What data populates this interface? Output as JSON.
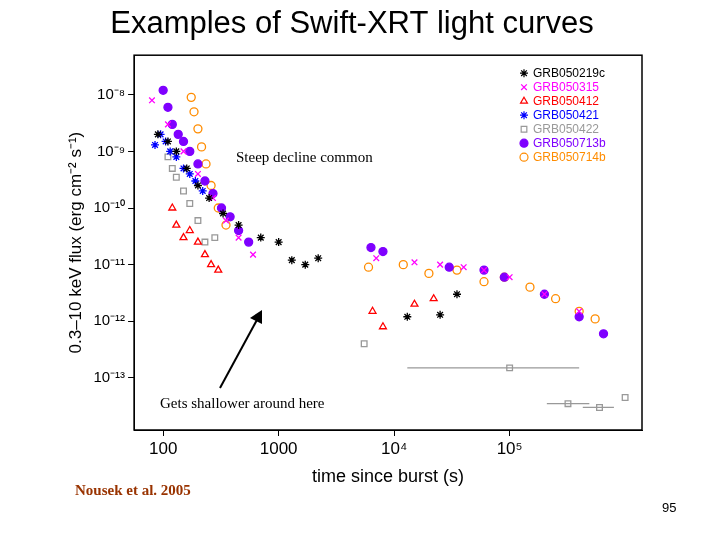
{
  "chart_data": {
    "type": "scatter",
    "title": "Examples of Swift-XRT light curves",
    "x_label": "time since burst (s)",
    "y_label": "0.3–10 keV flux (erg cm⁻² s⁻¹)",
    "log": true,
    "grid": false,
    "legend": "upper right",
    "xlim": [
      56,
      1400000
    ],
    "ylim": [
      1.2e-14,
      5e-08
    ],
    "xticks": [
      100,
      1000,
      {
        "value": 10000,
        "label": "10⁴"
      },
      {
        "value": 100000,
        "label": "10⁵"
      }
    ],
    "yticks": [
      {
        "value": 1e-13,
        "label": "10⁻¹³"
      },
      {
        "value": 1e-12,
        "label": "10⁻¹²"
      },
      {
        "value": 1e-11,
        "label": "10⁻¹¹"
      },
      {
        "value": 1e-10,
        "label": "10⁻¹⁰"
      },
      {
        "value": 1e-09,
        "label": "10⁻⁹"
      },
      {
        "value": 1e-08,
        "label": "10⁻⁸"
      }
    ],
    "annotations": [
      "Steep decline common",
      "Gets shallower around here"
    ],
    "source": "Nousek et al. 2005",
    "page_number": 95,
    "series": [
      {
        "name": "GRB050219c",
        "color": "#000000",
        "marker": "asterisk",
        "x": [
          90,
          110,
          130,
          160,
          200,
          250,
          330,
          450,
          700,
          1000,
          1300,
          1700,
          2200,
          13000,
          25000,
          35000
        ],
        "values": [
          2e-09,
          1.5e-09,
          1e-09,
          5e-10,
          2.5e-10,
          1.5e-10,
          8e-11,
          5e-11,
          3e-11,
          2.5e-11,
          1.2e-11,
          1e-11,
          1.3e-11,
          1.2e-12,
          1.3e-12,
          3e-12
        ]
      },
      {
        "name": "GRB050315",
        "color": "#ff00ff",
        "marker": "cross",
        "x": [
          80,
          110,
          150,
          200,
          270,
          350,
          450,
          600,
          7000,
          15000,
          25000,
          40000,
          60000,
          100000,
          200000,
          400000
        ],
        "values": [
          8e-09,
          3e-09,
          1e-09,
          4e-10,
          1.5e-10,
          6e-11,
          3e-11,
          1.5e-11,
          1.3e-11,
          1.1e-11,
          1e-11,
          9e-12,
          8e-12,
          6e-12,
          3e-12,
          1.5e-12
        ]
      },
      {
        "name": "GRB050412",
        "color": "#ff0000",
        "marker": "triangle",
        "x": [
          120,
          130,
          150,
          170,
          200,
          230,
          260,
          300,
          6500,
          8000,
          15000,
          22000
        ],
        "values": [
          1e-10,
          5e-11,
          3e-11,
          4e-11,
          2.5e-11,
          1.5e-11,
          1e-11,
          8e-12,
          1.5e-12,
          8e-13,
          2e-12,
          2.5e-12
        ]
      },
      {
        "name": "GRB050421",
        "color": "#0000ff",
        "marker": "star",
        "x": [
          85,
          95,
          105,
          115,
          130,
          150,
          170,
          190,
          220
        ],
        "values": [
          1.3e-09,
          2e-09,
          1.5e-09,
          1e-09,
          8e-10,
          5e-10,
          4e-10,
          3e-10,
          2e-10
        ]
      },
      {
        "name": "GRB050422",
        "color": "#999999",
        "marker": "square",
        "x": [
          110,
          120,
          130,
          150,
          170,
          200,
          230,
          280,
          5500,
          100000,
          320000,
          600000,
          1000000
        ],
        "values": [
          8e-10,
          5e-10,
          3.5e-10,
          2e-10,
          1.2e-10,
          6e-11,
          2.5e-11,
          3e-11,
          4e-13,
          1.5e-13,
          3.5e-14,
          3e-14,
          4.5e-14
        ],
        "xerr": [
          null,
          null,
          null,
          null,
          null,
          null,
          null,
          null,
          null,
          [
            87000,
            300000
          ],
          [
            110000,
            170000
          ],
          [
            170000,
            200000
          ],
          null
        ]
      },
      {
        "name": "GRB050713b",
        "color": "#7f00ff",
        "marker": "circle",
        "x": [
          100,
          110,
          120,
          135,
          150,
          170,
          200,
          230,
          270,
          320,
          380,
          450,
          550,
          6300,
          8000,
          30000,
          60000,
          90000,
          200000,
          400000,
          650000
        ],
        "values": [
          1.2e-08,
          6e-09,
          3e-09,
          2e-09,
          1.5e-09,
          1e-09,
          6e-10,
          3e-10,
          1.8e-10,
          1e-10,
          7e-11,
          4e-11,
          2.5e-11,
          2e-11,
          1.7e-11,
          9e-12,
          8e-12,
          6e-12,
          3e-12,
          1.2e-12,
          6e-13
        ]
      },
      {
        "name": "GRB050714b",
        "color": "#ff8c00",
        "marker": "open_circle",
        "x": [
          175,
          185,
          200,
          215,
          235,
          260,
          300,
          350,
          6000,
          12000,
          20000,
          35000,
          60000,
          90000,
          150000,
          250000,
          400000,
          550000
        ],
        "values": [
          9e-09,
          5e-09,
          2.5e-09,
          1.2e-09,
          6e-10,
          2.5e-10,
          1e-10,
          5e-11,
          9e-12,
          1e-11,
          7e-12,
          8e-12,
          5e-12,
          6e-12,
          4e-12,
          2.5e-12,
          1.5e-12,
          1.1e-12
        ]
      }
    ]
  }
}
